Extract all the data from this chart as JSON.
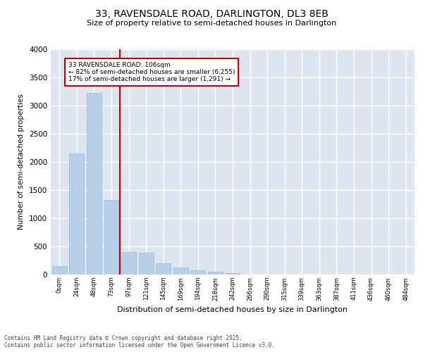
{
  "title1": "33, RAVENSDALE ROAD, DARLINGTON, DL3 8EB",
  "title2": "Size of property relative to semi-detached houses in Darlington",
  "xlabel": "Distribution of semi-detached houses by size in Darlington",
  "ylabel": "Number of semi-detached properties",
  "bar_color": "#b8cfe8",
  "bar_edge_color": "#9ab8d8",
  "bg_color": "#dde6f0",
  "grid_color": "#ffffff",
  "categories": [
    "0sqm",
    "24sqm",
    "48sqm",
    "73sqm",
    "97sqm",
    "121sqm",
    "145sqm",
    "169sqm",
    "194sqm",
    "218sqm",
    "242sqm",
    "266sqm",
    "290sqm",
    "315sqm",
    "339sqm",
    "363sqm",
    "387sqm",
    "411sqm",
    "436sqm",
    "460sqm",
    "484sqm"
  ],
  "values": [
    150,
    2150,
    3220,
    1320,
    400,
    390,
    200,
    130,
    80,
    55,
    30,
    0,
    0,
    0,
    0,
    0,
    0,
    0,
    0,
    0,
    0
  ],
  "ylim": [
    0,
    4000
  ],
  "yticks": [
    0,
    500,
    1000,
    1500,
    2000,
    2500,
    3000,
    3500,
    4000
  ],
  "annotation_title": "33 RAVENSDALE ROAD: 106sqm",
  "annotation_line1": "← 82% of semi-detached houses are smaller (6,255)",
  "annotation_line2": "17% of semi-detached houses are larger (1,291) →",
  "annotation_color": "#cc0000",
  "red_line_x": 4.0,
  "footer1": "Contains HM Land Registry data © Crown copyright and database right 2025.",
  "footer2": "Contains public sector information licensed under the Open Government Licence v3.0."
}
